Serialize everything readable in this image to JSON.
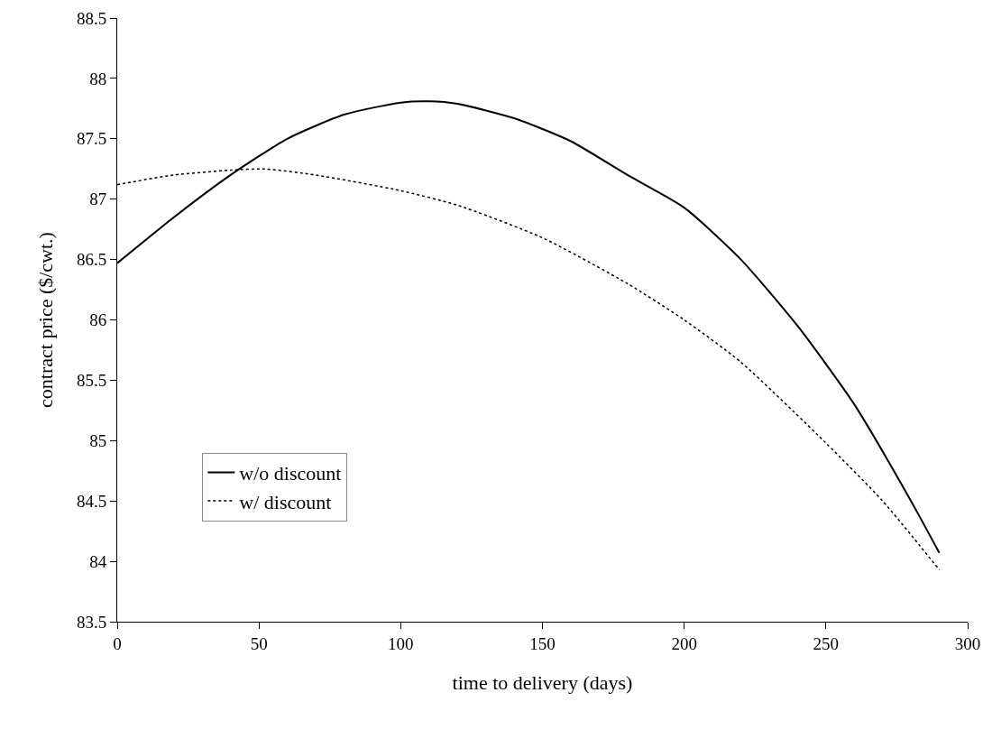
{
  "chart_data": {
    "type": "line",
    "xlabel": "time to delivery (days)",
    "ylabel": "contract price ($/cwt.)",
    "xlim": [
      0,
      300
    ],
    "xticks": [
      0,
      50,
      100,
      150,
      200,
      250,
      300
    ],
    "ylim": [
      83.5,
      88.5
    ],
    "yticks": [
      83.5,
      84,
      84.5,
      85,
      85.5,
      86,
      86.5,
      87,
      87.5,
      88,
      88.5
    ],
    "grid": false,
    "legend": "bottom left",
    "marker": "none",
    "series": [
      {
        "name": "w/o discount",
        "color": "#000000",
        "line_style": "solid",
        "x": [
          0,
          20,
          40,
          60,
          80,
          100,
          110,
          120,
          140,
          160,
          180,
          200,
          220,
          240,
          260,
          280,
          290
        ],
        "values": [
          86.47,
          86.85,
          87.2,
          87.5,
          87.7,
          87.8,
          87.81,
          87.79,
          87.67,
          87.48,
          87.2,
          86.93,
          86.5,
          85.95,
          85.3,
          84.5,
          84.07
        ]
      },
      {
        "name": "w/ discount",
        "color": "#000000",
        "line_style": "dotted",
        "x": [
          0,
          20,
          40,
          52,
          70,
          100,
          120,
          150,
          180,
          200,
          220,
          250,
          270,
          290
        ],
        "values": [
          87.12,
          87.2,
          87.24,
          87.25,
          87.2,
          87.07,
          86.95,
          86.68,
          86.3,
          86.0,
          85.65,
          84.98,
          84.5,
          83.93
        ]
      }
    ]
  }
}
